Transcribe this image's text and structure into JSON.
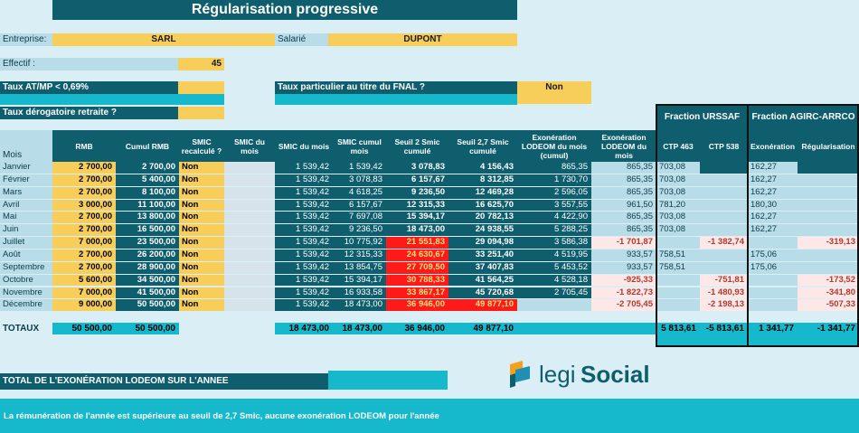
{
  "title": "Régularisation progressive",
  "entreprise": {
    "label": "Entreprise:",
    "value": "SARL"
  },
  "salarie": {
    "label": "Salarié",
    "value": "DUPONT"
  },
  "effectif": {
    "label": "Effectif :",
    "value": "45"
  },
  "taux_atmp": {
    "label": "Taux AT/MP < 0,69%"
  },
  "taux_fnal": {
    "label": "Taux particulier au titre du FNAL ?",
    "value": "Non"
  },
  "taux_retraite": {
    "label": "Taux dérogatoire retraite ?"
  },
  "fraction_urssaf": "Fraction URSSAF",
  "fraction_agirc": "Fraction AGIRC-ARRCO",
  "headers": {
    "mois": "Mois",
    "rmb": "RMB",
    "cumul_rmb": "Cumul RMB",
    "smic_recalcule": "SMIC recalculé ?",
    "smic_du_mois": "SMIC du mois",
    "smic_du_mois2": "SMIC du mois",
    "smic_cumul": "SMIC cumul mois",
    "seuil2": "Seuil 2 Smic cumulé",
    "seuil27": "Seuil 2,7 Smic cumulé",
    "exo_cumul": "Exonération LODEOM du mois (cumul)",
    "exo_mois": "Exonération LODEOM du mois",
    "ctp463": "CTP 463",
    "ctp538": "CTP 538",
    "exoneration": "Exonération",
    "regularisation": "Régularisation"
  },
  "rows": [
    {
      "mois": "Janvier",
      "rmb": "2 700,00",
      "cumul": "2 700,00",
      "smic_rec": "Non",
      "smic_m": "1 539,42",
      "smic_c": "1 539,42",
      "s2": "3 078,83",
      "s27": "4 156,43",
      "exo_c": "865,35",
      "exo_m": "865,35",
      "ctp463": "703,08",
      "ctp538": "",
      "agirc_exo": "162,27",
      "agirc_reg": ""
    },
    {
      "mois": "Février",
      "rmb": "2 700,00",
      "cumul": "5 400,00",
      "smic_rec": "Non",
      "smic_m": "1 539,42",
      "smic_c": "3 078,83",
      "s2": "6 157,67",
      "s27": "8 312,85",
      "exo_c": "1 730,70",
      "exo_m": "865,35",
      "ctp463": "703,08",
      "ctp538": "",
      "agirc_exo": "162,27",
      "agirc_reg": ""
    },
    {
      "mois": "Mars",
      "rmb": "2 700,00",
      "cumul": "8 100,00",
      "smic_rec": "Non",
      "smic_m": "1 539,42",
      "smic_c": "4 618,25",
      "s2": "9 236,50",
      "s27": "12 469,28",
      "exo_c": "2 596,05",
      "exo_m": "865,35",
      "ctp463": "703,08",
      "ctp538": "",
      "agirc_exo": "162,27",
      "agirc_reg": ""
    },
    {
      "mois": "Avril",
      "rmb": "3 000,00",
      "cumul": "11 100,00",
      "smic_rec": "Non",
      "smic_m": "1 539,42",
      "smic_c": "6 157,67",
      "s2": "12 315,33",
      "s27": "16 625,70",
      "exo_c": "3 557,55",
      "exo_m": "961,50",
      "ctp463": "781,20",
      "ctp538": "",
      "agirc_exo": "180,30",
      "agirc_reg": ""
    },
    {
      "mois": "Mai",
      "rmb": "2 700,00",
      "cumul": "13 800,00",
      "smic_rec": "Non",
      "smic_m": "1 539,42",
      "smic_c": "7 697,08",
      "s2": "15 394,17",
      "s27": "20 782,13",
      "exo_c": "4 422,90",
      "exo_m": "865,35",
      "ctp463": "703,08",
      "ctp538": "",
      "agirc_exo": "162,27",
      "agirc_reg": ""
    },
    {
      "mois": "Juin",
      "rmb": "2 700,00",
      "cumul": "16 500,00",
      "smic_rec": "Non",
      "smic_m": "1 539,42",
      "smic_c": "9 236,50",
      "s2": "18 473,00",
      "s27": "24 938,55",
      "exo_c": "5 288,25",
      "exo_m": "865,35",
      "ctp463": "703,08",
      "ctp538": "",
      "agirc_exo": "162,27",
      "agirc_reg": ""
    },
    {
      "mois": "Juillet",
      "rmb": "7 000,00",
      "cumul": "23 500,00",
      "smic_rec": "Non",
      "smic_m": "1 539,42",
      "smic_c": "10 775,92",
      "s2": "21 551,83",
      "s27": "29 094,98",
      "exo_c": "3 586,38",
      "exo_m": "-1 701,87",
      "ctp463": "",
      "ctp538": "-1 382,74",
      "agirc_exo": "",
      "agirc_reg": "-319,13"
    },
    {
      "mois": "Août",
      "rmb": "2 700,00",
      "cumul": "26 200,00",
      "smic_rec": "Non",
      "smic_m": "1 539,42",
      "smic_c": "12 315,33",
      "s2": "24 630,67",
      "s27": "33 251,40",
      "exo_c": "4 519,95",
      "exo_m": "933,57",
      "ctp463": "758,51",
      "ctp538": "",
      "agirc_exo": "175,06",
      "agirc_reg": ""
    },
    {
      "mois": "Septembre",
      "rmb": "2 700,00",
      "cumul": "28 900,00",
      "smic_rec": "Non",
      "smic_m": "1 539,42",
      "smic_c": "13 854,75",
      "s2": "27 709,50",
      "s27": "37 407,83",
      "exo_c": "5 453,52",
      "exo_m": "933,57",
      "ctp463": "758,51",
      "ctp538": "",
      "agirc_exo": "175,06",
      "agirc_reg": ""
    },
    {
      "mois": "Octobre",
      "rmb": "5 600,00",
      "cumul": "34 500,00",
      "smic_rec": "Non",
      "smic_m": "1 539,42",
      "smic_c": "15 394,17",
      "s2": "30 788,33",
      "s27": "41 564,25",
      "exo_c": "4 528,18",
      "exo_m": "-925,33",
      "ctp463": "",
      "ctp538": "-751,81",
      "agirc_exo": "",
      "agirc_reg": "-173,52"
    },
    {
      "mois": "Novembre",
      "rmb": "7 000,00",
      "cumul": "41 500,00",
      "smic_rec": "Non",
      "smic_m": "1 539,42",
      "smic_c": "16 933,58",
      "s2": "33 867,17",
      "s27": "45 720,68",
      "exo_c": "2 705,45",
      "exo_m": "-1 822,73",
      "ctp463": "",
      "ctp538": "-1 480,93",
      "agirc_exo": "",
      "agirc_reg": "-341,80"
    },
    {
      "mois": "Décembre",
      "rmb": "9 000,00",
      "cumul": "50 500,00",
      "smic_rec": "Non",
      "smic_m": "1 539,42",
      "smic_c": "18 473,00",
      "s2": "36 946,00",
      "s27": "49 877,10",
      "exo_c": "",
      "exo_m": "-2 705,45",
      "ctp463": "",
      "ctp538": "-2 198,13",
      "agirc_exo": "",
      "agirc_reg": "-507,33"
    }
  ],
  "totaux": {
    "label": "TOTAUX",
    "rmb": "50 500,00",
    "cumul": "50 500,00",
    "smic_m": "18 473,00",
    "smic_c": "18 473,00",
    "s2": "36 946,00",
    "s27": "49 877,10",
    "ctp463": "5 813,61",
    "ctp538": "-5 813,61",
    "agirc_exo": "1 341,77",
    "agirc_reg": "-1 341,77"
  },
  "total_exo_label": "TOTAL DE L'EXONÉRATION LODEOM SUR L'ANNEE",
  "logo": {
    "text1": "legi",
    "text2": "Social"
  },
  "footer": "La rémunération de l'année est supérieure au seuil de 2,7 Smic, aucune exonération LODEOM pour l'année"
}
